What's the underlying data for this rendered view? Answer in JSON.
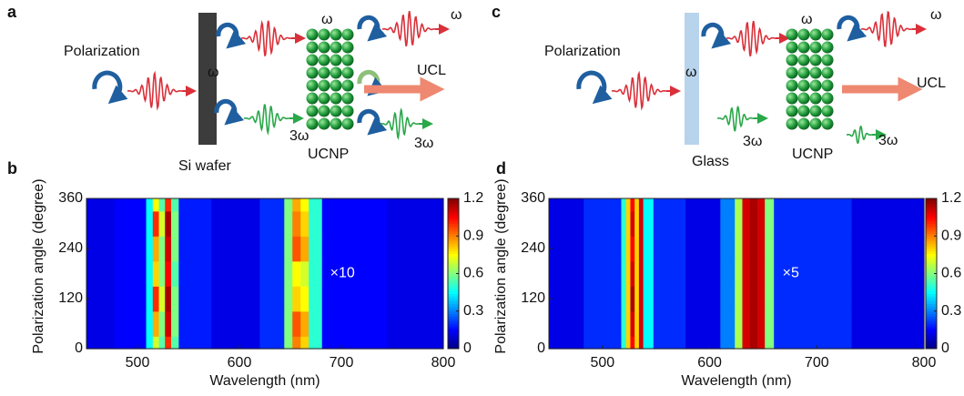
{
  "diagrams": [
    {
      "panel": "a",
      "labels": [
        "Polarization",
        "ω",
        "ω",
        "3ω",
        "Si wafer",
        "UCNP",
        "ω",
        "UCL",
        "3ω"
      ]
    },
    {
      "panel": "c",
      "labels": [
        "Polarization",
        "ω",
        "ω",
        "3ω",
        "Glass",
        "UCNP",
        "ω",
        "UCL",
        "3ω"
      ]
    }
  ],
  "chart_data": [
    {
      "type": "heatmap",
      "panel": "b",
      "xlabel": "Wavelength (nm)",
      "ylabel": "Polarization angle (degree)",
      "annotation": "×10",
      "x": [
        450,
        505,
        512,
        518,
        524,
        530,
        536,
        545,
        600,
        640,
        648,
        656,
        664,
        672,
        690,
        800
      ],
      "y": [
        0,
        60,
        120,
        180,
        240,
        300,
        360
      ],
      "values": [
        [
          0.12,
          0.15,
          0.45,
          0.7,
          0.55,
          1.0,
          0.55,
          0.18,
          0.12,
          0.2,
          0.6,
          0.9,
          0.8,
          0.5,
          0.15,
          0.12
        ],
        [
          0.12,
          0.15,
          0.45,
          0.85,
          0.6,
          1.1,
          0.6,
          0.18,
          0.12,
          0.2,
          0.6,
          0.95,
          0.85,
          0.5,
          0.15,
          0.12
        ],
        [
          0.12,
          0.15,
          0.45,
          1.0,
          0.7,
          1.15,
          0.6,
          0.18,
          0.12,
          0.2,
          0.6,
          0.8,
          0.75,
          0.5,
          0.15,
          0.12
        ],
        [
          0.12,
          0.15,
          0.45,
          0.8,
          0.6,
          1.05,
          0.55,
          0.18,
          0.12,
          0.2,
          0.6,
          0.75,
          0.7,
          0.5,
          0.15,
          0.12
        ],
        [
          0.12,
          0.15,
          0.45,
          0.85,
          0.6,
          1.1,
          0.6,
          0.18,
          0.12,
          0.2,
          0.6,
          0.95,
          0.85,
          0.5,
          0.15,
          0.12
        ],
        [
          0.12,
          0.15,
          0.45,
          1.0,
          0.7,
          1.15,
          0.6,
          0.18,
          0.12,
          0.2,
          0.6,
          0.9,
          0.8,
          0.5,
          0.15,
          0.12
        ],
        [
          0.12,
          0.15,
          0.45,
          0.75,
          0.55,
          1.0,
          0.55,
          0.18,
          0.12,
          0.2,
          0.6,
          0.85,
          0.75,
          0.5,
          0.15,
          0.12
        ]
      ],
      "xlim": [
        450,
        800
      ],
      "ylim": [
        0,
        360
      ],
      "xticks": [
        500,
        600,
        700,
        800
      ],
      "yticks": [
        0,
        120,
        240,
        360
      ],
      "clim": [
        0,
        1.2
      ],
      "cticks": [
        0,
        0.3,
        0.6,
        0.9,
        1.2
      ],
      "colormap": "jet"
    },
    {
      "type": "heatmap",
      "panel": "d",
      "xlabel": "Wavelength (nm)",
      "ylabel": "Polarization angle (degree)",
      "annotation": "×5",
      "x": [
        450,
        515,
        520,
        524,
        528,
        532,
        536,
        540,
        555,
        600,
        620,
        627,
        634,
        641,
        648,
        655,
        665,
        800
      ],
      "y": [
        0,
        60,
        120,
        180,
        240,
        300,
        360
      ],
      "values": [
        [
          0.12,
          0.2,
          0.5,
          0.8,
          1.05,
          0.8,
          1.1,
          0.45,
          0.2,
          0.12,
          0.3,
          0.65,
          1.1,
          1.15,
          1.1,
          0.6,
          0.2,
          0.12
        ],
        [
          0.12,
          0.2,
          0.5,
          0.8,
          1.1,
          0.8,
          1.1,
          0.45,
          0.2,
          0.12,
          0.3,
          0.65,
          1.1,
          1.15,
          1.1,
          0.6,
          0.2,
          0.12
        ],
        [
          0.12,
          0.2,
          0.5,
          0.8,
          1.15,
          0.8,
          1.1,
          0.45,
          0.2,
          0.12,
          0.3,
          0.65,
          1.1,
          1.15,
          1.1,
          0.6,
          0.2,
          0.12
        ],
        [
          0.12,
          0.2,
          0.5,
          0.8,
          1.1,
          0.8,
          1.1,
          0.45,
          0.2,
          0.12,
          0.3,
          0.65,
          1.1,
          1.15,
          1.1,
          0.6,
          0.2,
          0.12
        ],
        [
          0.12,
          0.2,
          0.5,
          0.8,
          1.05,
          0.8,
          1.1,
          0.45,
          0.2,
          0.12,
          0.3,
          0.65,
          1.1,
          1.15,
          1.1,
          0.6,
          0.2,
          0.12
        ],
        [
          0.12,
          0.2,
          0.5,
          0.8,
          1.1,
          0.8,
          1.1,
          0.45,
          0.2,
          0.12,
          0.3,
          0.65,
          1.1,
          1.15,
          1.1,
          0.6,
          0.2,
          0.12
        ],
        [
          0.12,
          0.2,
          0.5,
          0.8,
          1.05,
          0.8,
          1.1,
          0.45,
          0.2,
          0.12,
          0.3,
          0.65,
          1.1,
          1.15,
          1.1,
          0.6,
          0.2,
          0.12
        ]
      ],
      "xlim": [
        450,
        800
      ],
      "ylim": [
        0,
        360
      ],
      "xticks": [
        500,
        600,
        700,
        800
      ],
      "yticks": [
        0,
        120,
        240,
        360
      ],
      "clim": [
        0,
        1.2
      ],
      "cticks": [
        0,
        0.3,
        0.6,
        0.9,
        1.2
      ],
      "colormap": "jet"
    }
  ]
}
